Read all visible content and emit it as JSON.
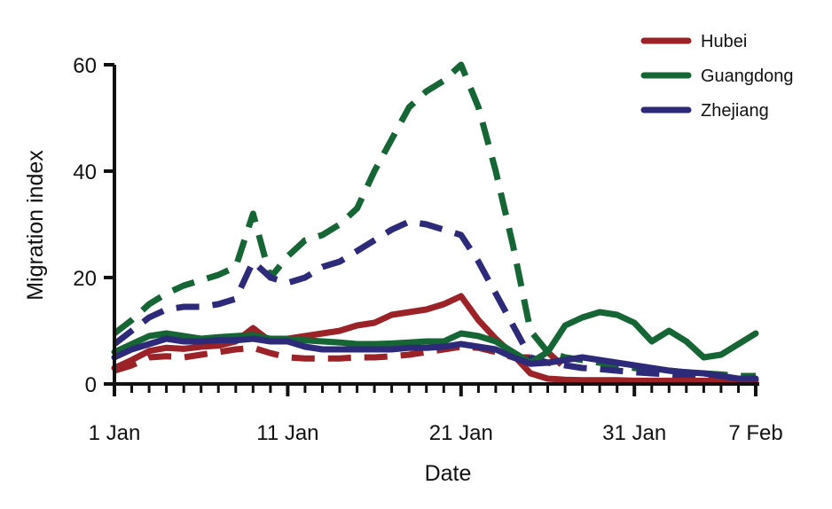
{
  "chart_data": {
    "type": "line",
    "xlabel": "Date",
    "ylabel": "Migration index",
    "ylim": [
      0,
      60
    ],
    "yticks": [
      0,
      20,
      40,
      60
    ],
    "xlim": [
      "2020-01-01",
      "2020-02-07"
    ],
    "xticks": [
      {
        "date": "2020-01-01",
        "label": "1 Jan"
      },
      {
        "date": "2020-01-11",
        "label": "11 Jan"
      },
      {
        "date": "2020-01-21",
        "label": "21 Jan"
      },
      {
        "date": "2020-01-31",
        "label": "31 Jan"
      },
      {
        "date": "2020-02-07",
        "label": "7 Feb"
      }
    ],
    "grid": false,
    "legend_position": "top-right",
    "line_styles": {
      "solid": "one year",
      "dashed": "other year"
    },
    "series": [
      {
        "name": "Hubei",
        "color": "#9b2226",
        "solid": [
          [
            "2020-01-01",
            3
          ],
          [
            "2020-01-02",
            4.5
          ],
          [
            "2020-01-03",
            6.2
          ],
          [
            "2020-01-04",
            6.8
          ],
          [
            "2020-01-05",
            6.6
          ],
          [
            "2020-01-06",
            7
          ],
          [
            "2020-01-07",
            7.2
          ],
          [
            "2020-01-08",
            8
          ],
          [
            "2020-01-09",
            10.5
          ],
          [
            "2020-01-10",
            8
          ],
          [
            "2020-01-11",
            8.5
          ],
          [
            "2020-01-12",
            9
          ],
          [
            "2020-01-13",
            9.5
          ],
          [
            "2020-01-14",
            10
          ],
          [
            "2020-01-15",
            11
          ],
          [
            "2020-01-16",
            11.5
          ],
          [
            "2020-01-17",
            13
          ],
          [
            "2020-01-18",
            13.5
          ],
          [
            "2020-01-19",
            14
          ],
          [
            "2020-01-20",
            15
          ],
          [
            "2020-01-21",
            16.5
          ],
          [
            "2020-01-22",
            12
          ],
          [
            "2020-01-23",
            8.5
          ],
          [
            "2020-01-24",
            5.5
          ],
          [
            "2020-01-25",
            2
          ],
          [
            "2020-01-26",
            1
          ],
          [
            "2020-01-27",
            0.8
          ],
          [
            "2020-01-28",
            0.7
          ],
          [
            "2020-01-29",
            0.7
          ],
          [
            "2020-01-30",
            0.7
          ],
          [
            "2020-01-31",
            0.6
          ],
          [
            "2020-02-01",
            0.6
          ],
          [
            "2020-02-02",
            0.6
          ],
          [
            "2020-02-03",
            0.6
          ],
          [
            "2020-02-04",
            0.6
          ],
          [
            "2020-02-05",
            0.6
          ],
          [
            "2020-02-06",
            0.6
          ],
          [
            "2020-02-07",
            0.6
          ]
        ],
        "dashed": [
          [
            "2020-01-01",
            2.5
          ],
          [
            "2020-01-02",
            3.5
          ],
          [
            "2020-01-03",
            5
          ],
          [
            "2020-01-04",
            5.2
          ],
          [
            "2020-01-05",
            5
          ],
          [
            "2020-01-06",
            5.5
          ],
          [
            "2020-01-07",
            6
          ],
          [
            "2020-01-08",
            6.5
          ],
          [
            "2020-01-09",
            6.8
          ],
          [
            "2020-01-10",
            5.8
          ],
          [
            "2020-01-11",
            5
          ],
          [
            "2020-01-12",
            4.8
          ],
          [
            "2020-01-13",
            4.8
          ],
          [
            "2020-01-14",
            4.8
          ],
          [
            "2020-01-15",
            5
          ],
          [
            "2020-01-16",
            5
          ],
          [
            "2020-01-17",
            5.2
          ],
          [
            "2020-01-18",
            5.5
          ],
          [
            "2020-01-19",
            6
          ],
          [
            "2020-01-20",
            6.5
          ],
          [
            "2020-01-21",
            7
          ],
          [
            "2020-01-22",
            6.8
          ],
          [
            "2020-01-23",
            6
          ],
          [
            "2020-01-24",
            5
          ],
          [
            "2020-01-25",
            5
          ],
          [
            "2020-01-26",
            6
          ],
          [
            "2020-01-27",
            3
          ]
        ]
      },
      {
        "name": "Guangdong",
        "color": "#166534",
        "solid": [
          [
            "2020-01-01",
            6
          ],
          [
            "2020-01-02",
            7.5
          ],
          [
            "2020-01-03",
            9
          ],
          [
            "2020-01-04",
            9.5
          ],
          [
            "2020-01-05",
            9
          ],
          [
            "2020-01-06",
            8.5
          ],
          [
            "2020-01-07",
            8.8
          ],
          [
            "2020-01-08",
            9
          ],
          [
            "2020-01-09",
            9.2
          ],
          [
            "2020-01-10",
            8.5
          ],
          [
            "2020-01-11",
            8.5
          ],
          [
            "2020-01-12",
            8.2
          ],
          [
            "2020-01-13",
            8
          ],
          [
            "2020-01-14",
            7.8
          ],
          [
            "2020-01-15",
            7.5
          ],
          [
            "2020-01-16",
            7.5
          ],
          [
            "2020-01-17",
            7.6
          ],
          [
            "2020-01-18",
            7.8
          ],
          [
            "2020-01-19",
            8
          ],
          [
            "2020-01-20",
            8
          ],
          [
            "2020-01-21",
            9.5
          ],
          [
            "2020-01-22",
            9
          ],
          [
            "2020-01-23",
            8
          ],
          [
            "2020-01-24",
            6
          ],
          [
            "2020-01-25",
            4
          ],
          [
            "2020-01-26",
            6
          ],
          [
            "2020-01-27",
            11
          ],
          [
            "2020-01-28",
            12.5
          ],
          [
            "2020-01-29",
            13.5
          ],
          [
            "2020-01-30",
            13
          ],
          [
            "2020-01-31",
            11.5
          ],
          [
            "2020-02-01",
            8
          ],
          [
            "2020-02-02",
            10
          ],
          [
            "2020-02-03",
            8
          ],
          [
            "2020-02-04",
            5
          ],
          [
            "2020-02-05",
            5.5
          ],
          [
            "2020-02-06",
            7.5
          ],
          [
            "2020-02-07",
            9.5
          ]
        ],
        "dashed": [
          [
            "2020-01-01",
            9.5
          ],
          [
            "2020-01-02",
            12
          ],
          [
            "2020-01-03",
            15
          ],
          [
            "2020-01-04",
            17
          ],
          [
            "2020-01-05",
            18.5
          ],
          [
            "2020-01-06",
            19.5
          ],
          [
            "2020-01-07",
            20.5
          ],
          [
            "2020-01-08",
            22
          ],
          [
            "2020-01-09",
            32
          ],
          [
            "2020-01-10",
            20
          ],
          [
            "2020-01-11",
            24
          ],
          [
            "2020-01-12",
            27
          ],
          [
            "2020-01-13",
            28
          ],
          [
            "2020-01-14",
            30
          ],
          [
            "2020-01-15",
            33
          ],
          [
            "2020-01-16",
            40
          ],
          [
            "2020-01-17",
            46
          ],
          [
            "2020-01-18",
            52
          ],
          [
            "2020-01-19",
            55
          ],
          [
            "2020-01-20",
            57
          ],
          [
            "2020-01-21",
            60
          ],
          [
            "2020-01-22",
            52
          ],
          [
            "2020-01-23",
            40
          ],
          [
            "2020-01-24",
            26
          ],
          [
            "2020-01-25",
            10
          ],
          [
            "2020-01-26",
            6
          ],
          [
            "2020-01-27",
            5
          ],
          [
            "2020-01-28",
            4.5
          ],
          [
            "2020-01-29",
            4
          ],
          [
            "2020-01-30",
            3.5
          ],
          [
            "2020-01-31",
            3
          ],
          [
            "2020-02-01",
            2.8
          ],
          [
            "2020-02-02",
            2.5
          ],
          [
            "2020-02-03",
            2.2
          ],
          [
            "2020-02-04",
            2
          ],
          [
            "2020-02-05",
            1.8
          ],
          [
            "2020-02-06",
            1.5
          ],
          [
            "2020-02-07",
            1.5
          ]
        ]
      },
      {
        "name": "Zhejiang",
        "color": "#2e2a7a",
        "solid": [
          [
            "2020-01-01",
            5
          ],
          [
            "2020-01-02",
            6.5
          ],
          [
            "2020-01-03",
            7.5
          ],
          [
            "2020-01-04",
            8.5
          ],
          [
            "2020-01-05",
            8
          ],
          [
            "2020-01-06",
            8
          ],
          [
            "2020-01-07",
            8.2
          ],
          [
            "2020-01-08",
            8.2
          ],
          [
            "2020-01-09",
            8.5
          ],
          [
            "2020-01-10",
            8
          ],
          [
            "2020-01-11",
            8
          ],
          [
            "2020-01-12",
            7
          ],
          [
            "2020-01-13",
            6.5
          ],
          [
            "2020-01-14",
            6.5
          ],
          [
            "2020-01-15",
            6.5
          ],
          [
            "2020-01-16",
            6.5
          ],
          [
            "2020-01-17",
            6.5
          ],
          [
            "2020-01-18",
            6.8
          ],
          [
            "2020-01-19",
            6.8
          ],
          [
            "2020-01-20",
            7
          ],
          [
            "2020-01-21",
            7.5
          ],
          [
            "2020-01-22",
            7
          ],
          [
            "2020-01-23",
            6.5
          ],
          [
            "2020-01-24",
            5
          ],
          [
            "2020-01-25",
            3.8
          ],
          [
            "2020-01-26",
            4
          ],
          [
            "2020-01-27",
            4.5
          ],
          [
            "2020-01-28",
            5
          ],
          [
            "2020-01-29",
            4.5
          ],
          [
            "2020-01-30",
            4
          ],
          [
            "2020-01-31",
            3.5
          ],
          [
            "2020-02-01",
            3
          ],
          [
            "2020-02-02",
            2.5
          ],
          [
            "2020-02-03",
            2.2
          ],
          [
            "2020-02-04",
            2
          ],
          [
            "2020-02-05",
            1.5
          ],
          [
            "2020-02-06",
            1
          ],
          [
            "2020-02-07",
            1
          ]
        ],
        "dashed": [
          [
            "2020-01-01",
            7.5
          ],
          [
            "2020-01-02",
            10
          ],
          [
            "2020-01-03",
            12.5
          ],
          [
            "2020-01-04",
            14
          ],
          [
            "2020-01-05",
            14.5
          ],
          [
            "2020-01-06",
            14.5
          ],
          [
            "2020-01-07",
            15
          ],
          [
            "2020-01-08",
            16
          ],
          [
            "2020-01-09",
            23
          ],
          [
            "2020-01-10",
            20
          ],
          [
            "2020-01-11",
            19
          ],
          [
            "2020-01-12",
            20
          ],
          [
            "2020-01-13",
            22
          ],
          [
            "2020-01-14",
            23
          ],
          [
            "2020-01-15",
            25
          ],
          [
            "2020-01-16",
            27
          ],
          [
            "2020-01-17",
            29
          ],
          [
            "2020-01-18",
            30.5
          ],
          [
            "2020-01-19",
            30
          ],
          [
            "2020-01-20",
            29
          ],
          [
            "2020-01-21",
            28
          ],
          [
            "2020-01-22",
            23
          ],
          [
            "2020-01-23",
            17
          ],
          [
            "2020-01-24",
            11
          ],
          [
            "2020-01-25",
            5
          ],
          [
            "2020-01-26",
            4
          ],
          [
            "2020-01-27",
            3.5
          ],
          [
            "2020-01-28",
            3
          ],
          [
            "2020-01-29",
            2.8
          ],
          [
            "2020-01-30",
            2.5
          ],
          [
            "2020-01-31",
            2.2
          ],
          [
            "2020-02-01",
            2
          ],
          [
            "2020-02-02",
            1.8
          ],
          [
            "2020-02-03",
            1.5
          ],
          [
            "2020-02-04",
            1.2
          ],
          [
            "2020-02-05",
            1
          ],
          [
            "2020-02-06",
            0.8
          ],
          [
            "2020-02-07",
            0.8
          ]
        ]
      }
    ]
  }
}
